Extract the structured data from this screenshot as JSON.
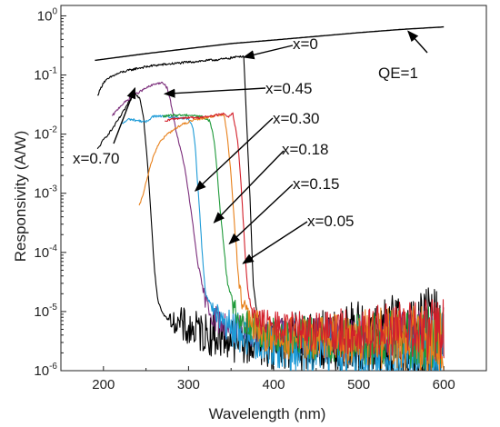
{
  "chart_data": {
    "type": "line",
    "title": "",
    "xlabel": "Wavelength (nm)",
    "ylabel": "Responsivity (A/W)",
    "x_scale": "linear",
    "y_scale": "log",
    "xlim": [
      150,
      650
    ],
    "ylim": [
      1e-06,
      1.5
    ],
    "x_ticks": [
      200,
      300,
      400,
      500,
      600
    ],
    "x_tick_labels": [
      "200",
      "300",
      "400",
      "500",
      "600"
    ],
    "y_ticks": [
      1e-06,
      1e-05,
      0.0001,
      0.001,
      0.01,
      0.1,
      1
    ],
    "y_tick_labels": [
      {
        "base": "10",
        "exp": "-6"
      },
      {
        "base": "10",
        "exp": "-5"
      },
      {
        "base": "10",
        "exp": "-4"
      },
      {
        "base": "10",
        "exp": "-3"
      },
      {
        "base": "10",
        "exp": "-2"
      },
      {
        "base": "10",
        "exp": "-1"
      },
      {
        "base": "10",
        "exp": "0"
      }
    ],
    "grid": false,
    "legend": "none",
    "series": [
      {
        "name": "QE=1",
        "color": "#000000",
        "noise": 0,
        "points": [
          [
            190,
            0.177
          ],
          [
            250,
            0.23
          ],
          [
            300,
            0.28
          ],
          [
            350,
            0.34
          ],
          [
            400,
            0.39
          ],
          [
            450,
            0.45
          ],
          [
            500,
            0.52
          ],
          [
            550,
            0.59
          ],
          [
            600,
            0.65
          ]
        ]
      },
      {
        "name": "x=0",
        "color": "#000000",
        "noise": 0.35,
        "noise_from": 392,
        "points": [
          [
            193,
            0.045
          ],
          [
            200,
            0.075
          ],
          [
            210,
            0.095
          ],
          [
            220,
            0.11
          ],
          [
            240,
            0.13
          ],
          [
            260,
            0.145
          ],
          [
            280,
            0.155
          ],
          [
            300,
            0.165
          ],
          [
            320,
            0.175
          ],
          [
            340,
            0.185
          ],
          [
            355,
            0.2
          ],
          [
            362,
            0.21
          ],
          [
            365,
            0.2
          ],
          [
            368,
            0.02
          ],
          [
            372,
            0.001
          ],
          [
            376,
            3e-05
          ],
          [
            380,
            1e-05
          ],
          [
            386,
            5e-06
          ],
          [
            392,
            4e-06
          ],
          [
            400,
            3.5e-06
          ],
          [
            420,
            3e-06
          ],
          [
            440,
            2.5e-06
          ],
          [
            460,
            2.3e-06
          ],
          [
            480,
            2.1e-06
          ],
          [
            500,
            1.9e-06
          ],
          [
            520,
            1.8e-06
          ],
          [
            540,
            1.7e-06
          ],
          [
            560,
            1.6e-06
          ],
          [
            580,
            1.5e-06
          ],
          [
            600,
            1.4e-06
          ]
        ]
      },
      {
        "name": "x=0.70",
        "color": "#000000",
        "noise": 0.5,
        "noise_from": 272,
        "points": [
          [
            193,
            0.0055
          ],
          [
            200,
            0.008
          ],
          [
            210,
            0.012
          ],
          [
            220,
            0.02
          ],
          [
            230,
            0.035
          ],
          [
            237,
            0.048
          ],
          [
            243,
            0.04
          ],
          [
            247,
            0.02
          ],
          [
            252,
            0.003
          ],
          [
            256,
            0.0004
          ],
          [
            260,
            5e-05
          ],
          [
            264,
            1.5e-05
          ],
          [
            270,
            9e-06
          ],
          [
            280,
            7e-06
          ],
          [
            300,
            5e-06
          ],
          [
            330,
            4e-06
          ],
          [
            350,
            3.5e-06
          ],
          [
            380,
            3e-06
          ],
          [
            410,
            3e-06
          ],
          [
            440,
            3.2e-06
          ],
          [
            470,
            3.5e-06
          ],
          [
            500,
            4e-06
          ],
          [
            530,
            4.5e-06
          ],
          [
            560,
            5e-06
          ],
          [
            600,
            6e-06
          ]
        ]
      },
      {
        "name": "x=0.45",
        "color": "#7b2d7b",
        "noise": 0.35,
        "noise_from": 308,
        "points": [
          [
            210,
            0.02
          ],
          [
            220,
            0.03
          ],
          [
            235,
            0.045
          ],
          [
            250,
            0.06
          ],
          [
            262,
            0.072
          ],
          [
            270,
            0.073
          ],
          [
            275,
            0.06
          ],
          [
            280,
            0.03
          ],
          [
            285,
            0.012
          ],
          [
            290,
            0.006
          ],
          [
            295,
            0.003
          ],
          [
            300,
            0.001
          ],
          [
            305,
            0.0003
          ],
          [
            310,
            8e-05
          ],
          [
            315,
            3e-05
          ],
          [
            320,
            1.5e-05
          ],
          [
            330,
            8e-06
          ],
          [
            350,
            5e-06
          ],
          [
            400,
            4e-06
          ],
          [
            450,
            3.5e-06
          ],
          [
            500,
            3.5e-06
          ],
          [
            550,
            4e-06
          ],
          [
            600,
            4.5e-06
          ]
        ]
      },
      {
        "name": "x=0.30",
        "color": "#1e9bd7",
        "noise": 0.5,
        "noise_from": 322,
        "points": [
          [
            222,
            0.015
          ],
          [
            230,
            0.018
          ],
          [
            240,
            0.017
          ],
          [
            250,
            0.016
          ],
          [
            258,
            0.02
          ],
          [
            270,
            0.02
          ],
          [
            285,
            0.019
          ],
          [
            300,
            0.018
          ],
          [
            305,
            0.013
          ],
          [
            308,
            0.006
          ],
          [
            310,
            0.002
          ],
          [
            313,
            0.0005
          ],
          [
            316,
            0.0001
          ],
          [
            320,
            2e-05
          ],
          [
            330,
            1e-05
          ],
          [
            350,
            5e-06
          ],
          [
            400,
            3e-06
          ],
          [
            450,
            2.5e-06
          ],
          [
            500,
            2.2e-06
          ],
          [
            550,
            2e-06
          ],
          [
            600,
            2e-06
          ]
        ]
      },
      {
        "name": "x=0.18",
        "color": "#1f9a3a",
        "noise": 0.4,
        "noise_from": 340,
        "points": [
          [
            270,
            0.02
          ],
          [
            285,
            0.021
          ],
          [
            300,
            0.021
          ],
          [
            315,
            0.02
          ],
          [
            320,
            0.018
          ],
          [
            325,
            0.017
          ],
          [
            330,
            0.008
          ],
          [
            333,
            0.003
          ],
          [
            336,
            0.0008
          ],
          [
            340,
            0.0002
          ],
          [
            345,
            4e-05
          ],
          [
            350,
            1.5e-05
          ],
          [
            360,
            8e-06
          ],
          [
            380,
            5e-06
          ],
          [
            400,
            4e-06
          ],
          [
            450,
            3.5e-06
          ],
          [
            500,
            3.5e-06
          ],
          [
            550,
            3.5e-06
          ],
          [
            600,
            3.5e-06
          ]
        ]
      },
      {
        "name": "x=0.15",
        "color": "#e8801a",
        "noise": 0.45,
        "noise_from": 352,
        "points": [
          [
            242,
            0.0006
          ],
          [
            246,
            0.0009
          ],
          [
            250,
            0.0015
          ],
          [
            258,
            0.004
          ],
          [
            265,
            0.007
          ],
          [
            275,
            0.01
          ],
          [
            290,
            0.014
          ],
          [
            305,
            0.017
          ],
          [
            320,
            0.019
          ],
          [
            335,
            0.021
          ],
          [
            342,
            0.021
          ],
          [
            346,
            0.008
          ],
          [
            350,
            0.002
          ],
          [
            354,
            0.0003
          ],
          [
            358,
            5e-05
          ],
          [
            362,
            1.5e-05
          ],
          [
            370,
            7e-06
          ],
          [
            390,
            4e-06
          ],
          [
            420,
            3.5e-06
          ],
          [
            450,
            3.5e-06
          ],
          [
            500,
            3.5e-06
          ],
          [
            550,
            3.5e-06
          ],
          [
            600,
            3.5e-06
          ]
        ]
      },
      {
        "name": "x=0.05",
        "color": "#d3202b",
        "noise": 0.4,
        "noise_from": 368,
        "points": [
          [
            272,
            0.016
          ],
          [
            280,
            0.018
          ],
          [
            295,
            0.019
          ],
          [
            310,
            0.019
          ],
          [
            325,
            0.02
          ],
          [
            340,
            0.022
          ],
          [
            347,
            0.02
          ],
          [
            352,
            0.022
          ],
          [
            355,
            0.013
          ],
          [
            358,
            0.007
          ],
          [
            361,
            0.002
          ],
          [
            364,
            0.0004
          ],
          [
            367,
            7e-05
          ],
          [
            370,
            2e-05
          ],
          [
            375,
            1e-05
          ],
          [
            390,
            6e-06
          ],
          [
            420,
            5e-06
          ],
          [
            450,
            4.5e-06
          ],
          [
            500,
            4.5e-06
          ],
          [
            550,
            5e-06
          ],
          [
            600,
            5e-06
          ]
        ]
      }
    ],
    "annotations": [
      {
        "id": "x0",
        "text": "x=0",
        "point": [
          365,
          0.2
        ]
      },
      {
        "id": "x045",
        "text": "x=0.45",
        "point": [
          272,
          0.048
        ]
      },
      {
        "id": "x030",
        "text": "x=0.30",
        "point": [
          308,
          0.0011
        ]
      },
      {
        "id": "x018",
        "text": "x=0.18",
        "point": [
          330,
          0.00032
        ]
      },
      {
        "id": "x015",
        "text": "x=0.15",
        "point": [
          348,
          0.00014
        ]
      },
      {
        "id": "x005",
        "text": "x=0.05",
        "point": [
          364,
          6.5e-05
        ]
      },
      {
        "id": "x070",
        "text": "x=0.70",
        "point": [
          237,
          0.06
        ]
      },
      {
        "id": "qe1",
        "text": "QE=1",
        "point": [
          558,
          0.55
        ]
      }
    ]
  }
}
